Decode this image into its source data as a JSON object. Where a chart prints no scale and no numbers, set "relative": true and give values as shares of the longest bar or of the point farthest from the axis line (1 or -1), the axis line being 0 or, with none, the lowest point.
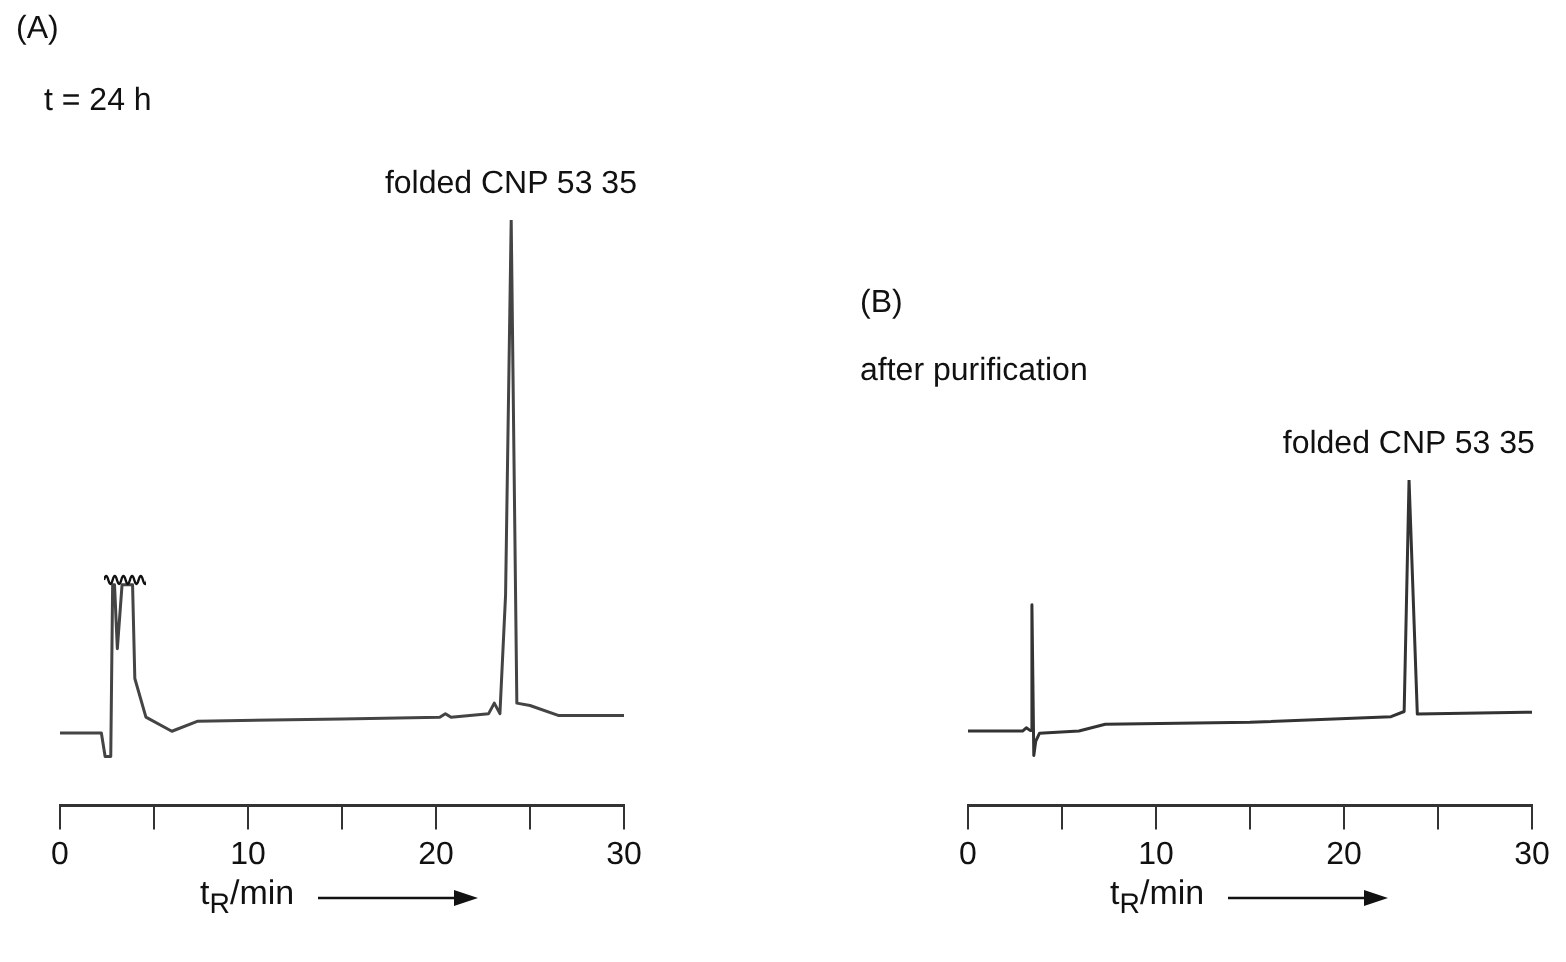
{
  "chart_data": [
    {
      "type": "line",
      "title": "(A)",
      "subtitle": "t = 24 h",
      "xlabel": "t$_{R}$/min",
      "relative": true,
      "color": "#444444",
      "xlim": [
        0,
        30
      ],
      "xticks": [
        0,
        {
          "value": 5,
          "label": null
        },
        10,
        {
          "value": 15,
          "label": null
        },
        20,
        {
          "value": 25,
          "label": null
        },
        30
      ],
      "grid": false,
      "x": [
        0,
        2.2,
        2.4,
        2.7,
        2.8,
        2.9,
        3.05,
        3.3,
        3.86,
        3.98,
        4.57,
        5.95,
        7.3,
        15,
        20.2,
        20.5,
        20.8,
        22.8,
        23.1,
        23.4,
        23.7,
        24,
        24.3,
        25,
        26.5,
        30
      ],
      "values": [
        0.124,
        0.124,
        0.084,
        0.084,
        0.377,
        0.377,
        0.268,
        0.377,
        0.377,
        0.217,
        0.151,
        0.127,
        0.144,
        0.148,
        0.151,
        0.157,
        0.151,
        0.157,
        0.175,
        0.157,
        0.359,
        1,
        0.175,
        0.171,
        0.154,
        0.154
      ],
      "annotations": [
        {
          "text": "folded CNP 53 35",
          "x": 24,
          "y": 1
        }
      ]
    },
    {
      "type": "line",
      "title": "(B)",
      "subtitle": "after purification",
      "xlabel": "t$_{R}$/min",
      "relative": true,
      "color": "#333333",
      "xlim": [
        0,
        30
      ],
      "xticks": [
        0,
        {
          "value": 5,
          "label": null
        },
        10,
        {
          "value": 15,
          "label": null
        },
        20,
        {
          "value": 25,
          "label": null
        },
        30
      ],
      "grid": false,
      "x": [
        0,
        2.9,
        3.1,
        3.3,
        3.4,
        3.5,
        3.6,
        3.8,
        5.9,
        7.3,
        15,
        22.5,
        23.2,
        23.46,
        23.9,
        30
      ],
      "values": [
        0.229,
        0.229,
        0.239,
        0.231,
        0.617,
        0.154,
        0.197,
        0.222,
        0.229,
        0.25,
        0.256,
        0.273,
        0.289,
        1,
        0.281,
        0.287
      ],
      "annotations": [
        {
          "text": "folded CNP 53 35",
          "x": 23.46,
          "y": 1
        }
      ]
    }
  ]
}
